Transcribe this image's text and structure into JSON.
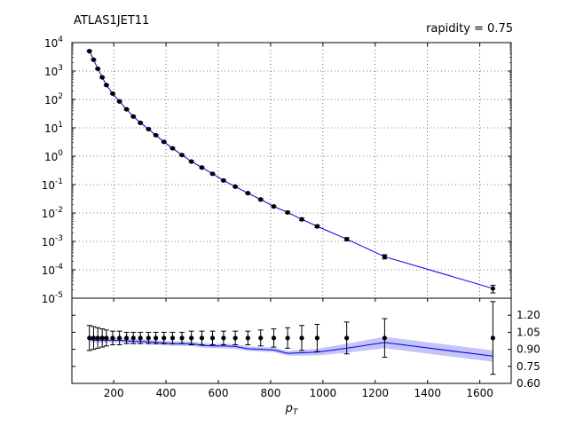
{
  "labels": {
    "dataset": "ATLAS1JET11",
    "rapidity": "rapidity = 0.75"
  },
  "chart_data": [
    {
      "type": "scatter",
      "panel": "main",
      "xlim": [
        40,
        1720
      ],
      "ylim": [
        1e-05,
        10000.0
      ],
      "yscale": "log",
      "grid": true,
      "xlabel": "",
      "ylabel": "",
      "yticks": [
        {
          "value": 10000.0,
          "base": "10",
          "exp": "4"
        },
        {
          "value": 1000.0,
          "base": "10",
          "exp": "3"
        },
        {
          "value": 100.0,
          "base": "10",
          "exp": "2"
        },
        {
          "value": 10.0,
          "base": "10",
          "exp": "1"
        },
        {
          "value": 1,
          "base": "10",
          "exp": "0"
        },
        {
          "value": 0.1,
          "base": "10",
          "exp": "-1"
        },
        {
          "value": 0.01,
          "base": "10",
          "exp": "-2"
        },
        {
          "value": 0.001,
          "base": "10",
          "exp": "-3"
        },
        {
          "value": 0.0001,
          "base": "10",
          "exp": "-4"
        },
        {
          "value": 1e-05,
          "base": "10",
          "exp": "-5"
        }
      ],
      "series": [
        {
          "style": "points-with-errors",
          "color": "#000000",
          "x": [
            107,
            123,
            139,
            156,
            172,
            196,
            222,
            249,
            275,
            302,
            333,
            361,
            392,
            425,
            461,
            497,
            537,
            578,
            620,
            665,
            713,
            762,
            812,
            865,
            919,
            978,
            1091,
            1236,
            1650
          ],
          "y": [
            5000,
            2500,
            1200,
            600,
            320,
            160,
            85,
            45,
            25,
            15,
            9,
            5.5,
            3.2,
            1.9,
            1.1,
            0.65,
            0.4,
            0.24,
            0.14,
            0.085,
            0.05,
            0.03,
            0.017,
            0.0105,
            0.006,
            0.0034,
            0.0012,
            0.00029,
            2.2e-05
          ],
          "err_rel": [
            0.06,
            0.06,
            0.06,
            0.06,
            0.06,
            0.06,
            0.06,
            0.06,
            0.06,
            0.06,
            0.06,
            0.06,
            0.06,
            0.06,
            0.06,
            0.06,
            0.06,
            0.06,
            0.06,
            0.06,
            0.06,
            0.07,
            0.08,
            0.09,
            0.1,
            0.11,
            0.12,
            0.17,
            0.3
          ]
        },
        {
          "style": "line-with-band",
          "color": "#0000ee",
          "band_color": "#c4c4f7",
          "x": [
            107,
            123,
            139,
            156,
            172,
            196,
            222,
            249,
            275,
            302,
            333,
            361,
            392,
            425,
            461,
            497,
            537,
            578,
            620,
            665,
            713,
            762,
            812,
            865,
            919,
            978,
            1091,
            1236,
            1650
          ],
          "y": [
            5000,
            2500,
            1200,
            600,
            320,
            160,
            85,
            45,
            25,
            15,
            9,
            5.5,
            3.2,
            1.9,
            1.1,
            0.65,
            0.4,
            0.24,
            0.14,
            0.085,
            0.05,
            0.03,
            0.017,
            0.0105,
            0.006,
            0.0034,
            0.0012,
            0.00029,
            2.2e-05
          ]
        }
      ]
    },
    {
      "type": "line",
      "panel": "ratio",
      "xlim": [
        40,
        1720
      ],
      "ylim": [
        0.6,
        1.35
      ],
      "grid": false,
      "xlabel": "p_T",
      "ylabel": "",
      "xticks": [
        200,
        400,
        600,
        800,
        1000,
        1200,
        1400,
        1600
      ],
      "yticks": [
        0.6,
        0.75,
        0.9,
        1.05,
        1.2
      ],
      "ytick_labels": [
        "0.60",
        "0.75",
        "0.90",
        "1.05",
        "1.20"
      ],
      "series": [
        {
          "style": "points-with-errors",
          "color": "#000000",
          "x": [
            107,
            123,
            139,
            156,
            172,
            196,
            222,
            249,
            275,
            302,
            333,
            361,
            392,
            425,
            461,
            497,
            537,
            578,
            620,
            665,
            713,
            762,
            812,
            865,
            919,
            978,
            1091,
            1236,
            1650
          ],
          "y": [
            1,
            1,
            1,
            1,
            1,
            1,
            1,
            1,
            1,
            1,
            1,
            1,
            1,
            1,
            1,
            1,
            1,
            1,
            1,
            1,
            1,
            1,
            1,
            1,
            1,
            1,
            1,
            1,
            1
          ],
          "err": [
            0.11,
            0.1,
            0.09,
            0.08,
            0.07,
            0.06,
            0.06,
            0.05,
            0.05,
            0.05,
            0.05,
            0.05,
            0.05,
            0.05,
            0.05,
            0.06,
            0.06,
            0.06,
            0.06,
            0.06,
            0.06,
            0.07,
            0.08,
            0.09,
            0.11,
            0.12,
            0.14,
            0.17,
            0.32
          ]
        },
        {
          "style": "line-with-band",
          "color": "#0000ee",
          "band_color": "#c4c4f7",
          "x": [
            107,
            123,
            139,
            156,
            172,
            196,
            222,
            249,
            275,
            302,
            333,
            361,
            392,
            425,
            461,
            497,
            537,
            578,
            620,
            665,
            713,
            762,
            812,
            865,
            919,
            978,
            1091,
            1236,
            1650
          ],
          "y": [
            0.99,
            0.98,
            0.98,
            0.98,
            0.98,
            0.98,
            0.98,
            0.975,
            0.97,
            0.97,
            0.965,
            0.96,
            0.955,
            0.95,
            0.95,
            0.95,
            0.935,
            0.93,
            0.93,
            0.925,
            0.905,
            0.9,
            0.895,
            0.865,
            0.87,
            0.875,
            0.91,
            0.96,
            0.84
          ],
          "band": [
            0.02,
            0.02,
            0.02,
            0.02,
            0.02,
            0.02,
            0.02,
            0.02,
            0.02,
            0.02,
            0.02,
            0.02,
            0.02,
            0.02,
            0.02,
            0.02,
            0.02,
            0.02,
            0.02,
            0.02,
            0.02,
            0.02,
            0.02,
            0.02,
            0.025,
            0.03,
            0.04,
            0.05,
            0.05
          ]
        }
      ]
    }
  ]
}
